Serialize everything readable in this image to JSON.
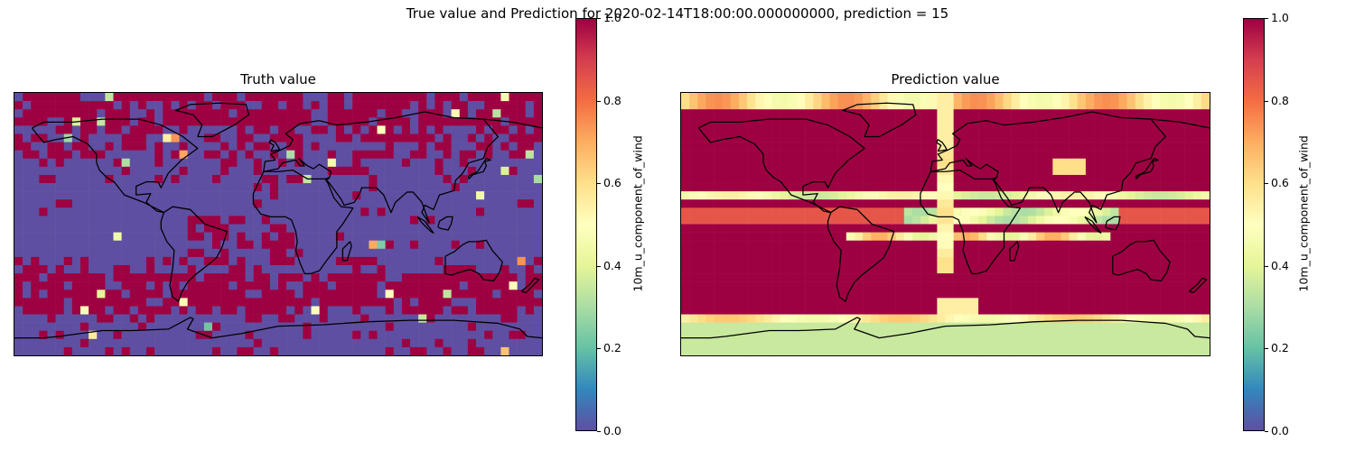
{
  "figure": {
    "suptitle": "True value and Prediction for 2020-02-14T18:00:00.000000000, prediction = 15"
  },
  "panels": [
    {
      "id": "truth",
      "title": "Truth value",
      "colorbar_label": "10m_u_component_of_wind",
      "colorbar_ticks": [
        "0.0",
        "0.2",
        "0.4",
        "0.6",
        "0.8",
        "1.0"
      ]
    },
    {
      "id": "prediction",
      "title": "Prediction value",
      "colorbar_label": "10m_u_component_of_wind",
      "colorbar_ticks": [
        "0.0",
        "0.2",
        "0.4",
        "0.6",
        "0.8",
        "1.0"
      ]
    }
  ],
  "chart_data": {
    "type": "heatmap",
    "projection": "PlateCarree",
    "colormap": "Spectral_r",
    "vmin": 0.0,
    "vmax": 1.0,
    "grid": {
      "nx": 64,
      "ny": 32,
      "lon_range": [
        -180,
        180
      ],
      "lat_range": [
        90,
        -90
      ]
    },
    "colors": {
      "low": "#5e4fa2",
      "high": "#9e0142",
      "mid": "#ffffbf",
      "coastline": "#000000"
    },
    "truth_summary": "mostly binary field: low (0.0) over tropics/mid-latitudes, high (1.0) in bands near 60N, 40S-55S and scattered patches",
    "prediction_summary": "mostly high (1.0) with low-mid (0.3-0.7) bands near 10N-25N, 5S-15S and along the prime meridian, Antarctic band around 0.35"
  }
}
